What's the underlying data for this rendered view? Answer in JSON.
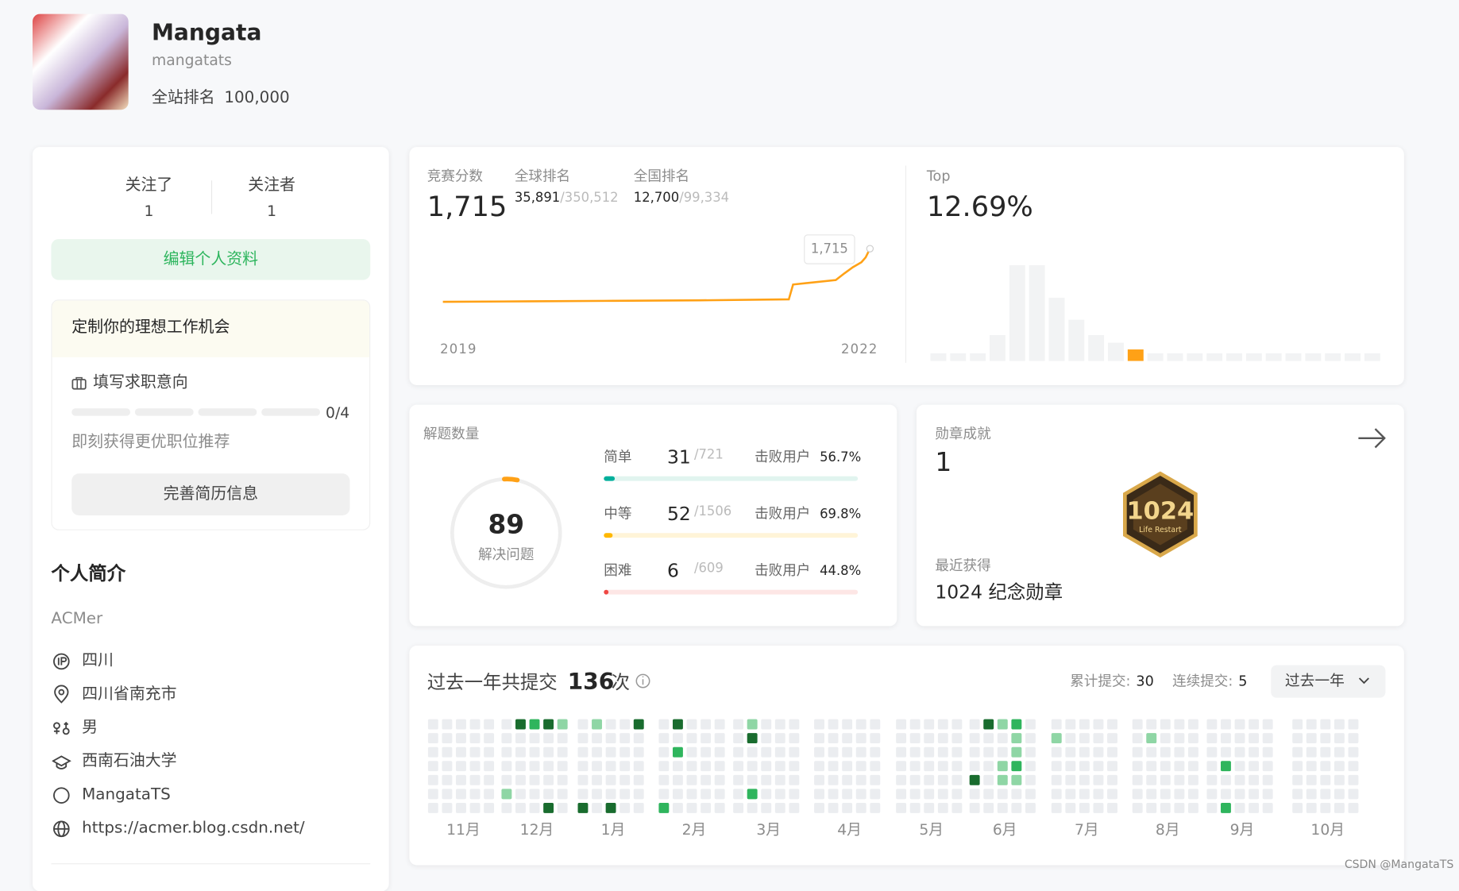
{
  "header": {
    "name": "Mangata",
    "username": "mangatats",
    "rank_label": "全站排名",
    "rank": "100,000"
  },
  "follow": {
    "following_label": "关注了",
    "following": 1,
    "followers_label": "关注者",
    "followers": 1
  },
  "edit_button": "编辑个人资料",
  "job": {
    "title": "定制你的理想工作机会",
    "item": "填写求职意向",
    "progress": "0/4",
    "hint": "即刻获得更优职位推荐",
    "button": "完善简历信息"
  },
  "bio": {
    "title": "个人简介",
    "text": "ACMer",
    "items": [
      "四川",
      "四川省南充市",
      "男",
      "西南石油大学",
      "MangataTS",
      "https://acmer.blog.csdn.net/"
    ]
  },
  "contest": {
    "score_label": "竞赛分数",
    "score": "1,715",
    "global_label": "全球排名",
    "global_rank": "35,891",
    "global_total": "/350,512",
    "national_label": "全国排名",
    "national_rank": "12,700",
    "national_total": "/99,334",
    "top_label": "Top",
    "top": "12.69%",
    "rating_chart": {
      "type": "line",
      "color": "#ffa116",
      "x_labels": [
        "2019",
        "2022"
      ],
      "x": [
        0,
        20,
        40,
        60,
        81,
        82,
        92,
        94,
        96,
        98,
        99,
        100
      ],
      "values": [
        1500,
        1502,
        1504,
        1506,
        1510,
        1570,
        1588,
        1615,
        1640,
        1660,
        1680,
        1715
      ],
      "xlim": [
        0,
        100
      ],
      "ylim": [
        1400,
        1750
      ],
      "tooltip": "1,715"
    },
    "distribution": {
      "type": "bar",
      "values": [
        8,
        8,
        8,
        27,
        100,
        100,
        66,
        43,
        27,
        19,
        12,
        8,
        8,
        8,
        8,
        8,
        8,
        8,
        8,
        8,
        8,
        8,
        8
      ],
      "ylim": [
        0,
        100
      ],
      "highlight": 10,
      "color": "#f2f3f4",
      "highlight_color": "#ffa116"
    }
  },
  "solved": {
    "label": "解题数量",
    "total": 89,
    "total_label": "解决问题",
    "rows": [
      {
        "name": "简单",
        "solved": 31,
        "total": {
          "value": 721,
          "label": "/721"
        },
        "beat_label": "击败用户",
        "beat": "56.7%",
        "color": "#00af9b",
        "track": "#e1f4ef"
      },
      {
        "name": "中等",
        "solved": 52,
        "total": {
          "value": 1506,
          "label": "/1506"
        },
        "beat_label": "击败用户",
        "beat": "69.8%",
        "color": "#ffb800",
        "track": "#fff4d8"
      },
      {
        "name": "困难",
        "solved": 6,
        "total": {
          "value": 609,
          "label": "/609"
        },
        "beat_label": "击败用户",
        "beat": "44.8%",
        "color": "#ef4743",
        "track": "#fde6e5"
      }
    ]
  },
  "badges": {
    "label": "勋章成就",
    "count": 1,
    "badge_text": "1024",
    "badge_sub": "Life Restart",
    "recent_label": "最近获得",
    "recent": "1024 纪念勋章"
  },
  "heatmap": {
    "title": "过去一年共提交",
    "count": 136,
    "unit": "次",
    "total_label": "累计提交:",
    "total": 30,
    "streak_label": "连续提交:",
    "streak": 5,
    "range": "过去一年",
    "months": [
      "11月",
      "12月",
      "1月",
      "2月",
      "3月",
      "4月",
      "5月",
      "6月",
      "7月",
      "8月",
      "9月",
      "10月"
    ],
    "colors": [
      "#ebedf0",
      "#8fd6a5",
      "#2fb55d",
      "#196c2e"
    ],
    "active": [
      [
        1,
        1,
        0,
        3
      ],
      [
        1,
        2,
        0,
        2
      ],
      [
        1,
        3,
        0,
        3
      ],
      [
        1,
        4,
        0,
        1
      ],
      [
        1,
        0,
        5,
        1
      ],
      [
        1,
        3,
        6,
        3
      ],
      [
        2,
        1,
        0,
        1
      ],
      [
        2,
        4,
        0,
        3
      ],
      [
        2,
        0,
        6,
        3
      ],
      [
        2,
        2,
        6,
        3
      ],
      [
        3,
        1,
        0,
        3
      ],
      [
        3,
        1,
        2,
        2
      ],
      [
        3,
        0,
        6,
        2
      ],
      [
        4,
        1,
        0,
        1
      ],
      [
        4,
        1,
        1,
        3
      ],
      [
        4,
        1,
        5,
        2
      ],
      [
        7,
        1,
        0,
        3
      ],
      [
        7,
        2,
        0,
        1
      ],
      [
        7,
        3,
        0,
        2
      ],
      [
        7,
        3,
        1,
        1
      ],
      [
        7,
        3,
        2,
        1
      ],
      [
        7,
        2,
        3,
        1
      ],
      [
        7,
        3,
        3,
        2
      ],
      [
        7,
        0,
        4,
        3
      ],
      [
        7,
        2,
        4,
        1
      ],
      [
        7,
        3,
        4,
        1
      ],
      [
        8,
        0,
        1,
        1
      ],
      [
        9,
        1,
        1,
        1
      ],
      [
        10,
        1,
        3,
        2
      ],
      [
        10,
        1,
        6,
        2
      ]
    ]
  },
  "watermark": "CSDN @MangataTS"
}
